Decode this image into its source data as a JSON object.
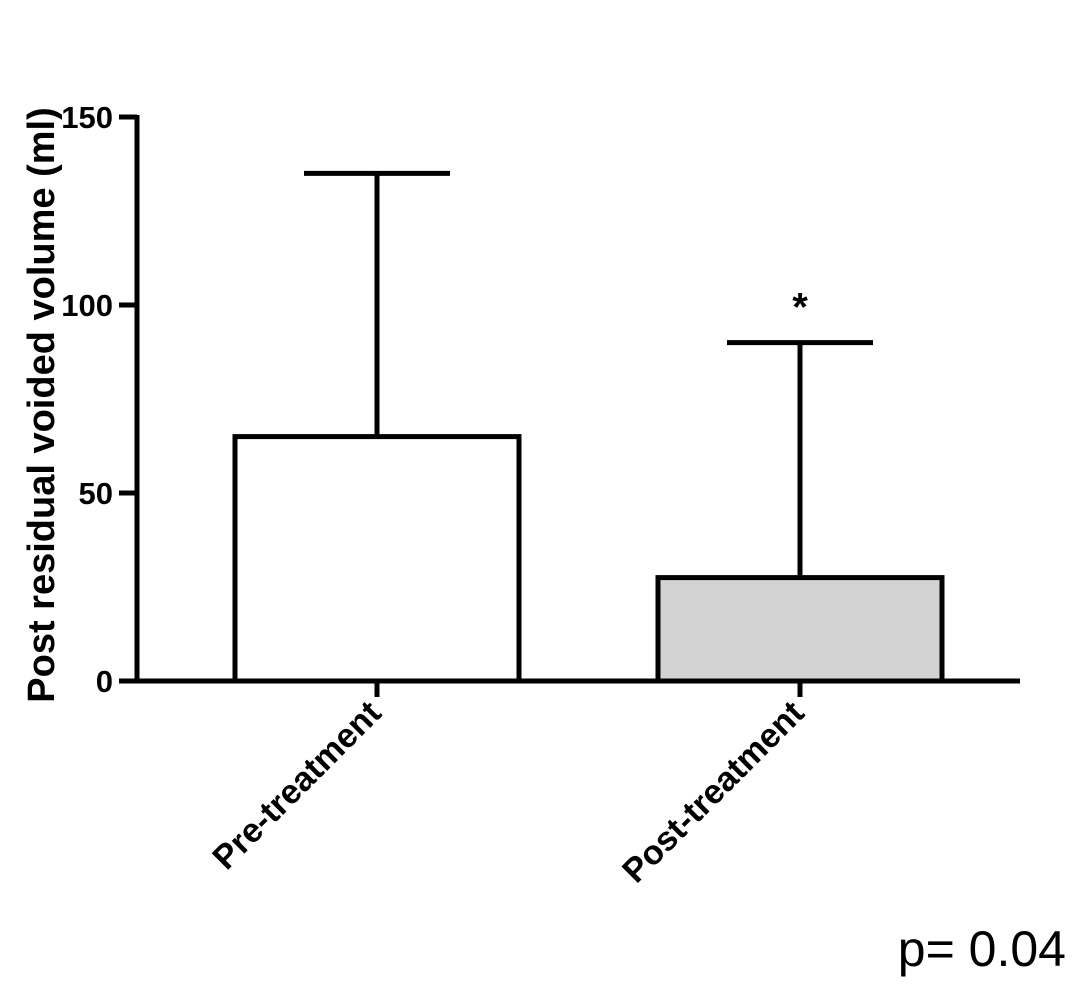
{
  "chart_data": {
    "type": "bar",
    "title": "",
    "xlabel": "",
    "ylabel": "Post residual voided volume (ml)",
    "ylim": [
      0,
      150
    ],
    "yticks": [
      0,
      50,
      100,
      150
    ],
    "categories": [
      "Pre-treatment",
      "Post-treatment"
    ],
    "values": [
      65,
      27.5
    ],
    "error_upper": [
      135,
      90
    ],
    "bar_colors": [
      "#ffffff",
      "#d3d3d3"
    ],
    "significance_marks": [
      "",
      "*"
    ],
    "grid": false,
    "legend": "none",
    "annotation": "p= 0.04"
  }
}
